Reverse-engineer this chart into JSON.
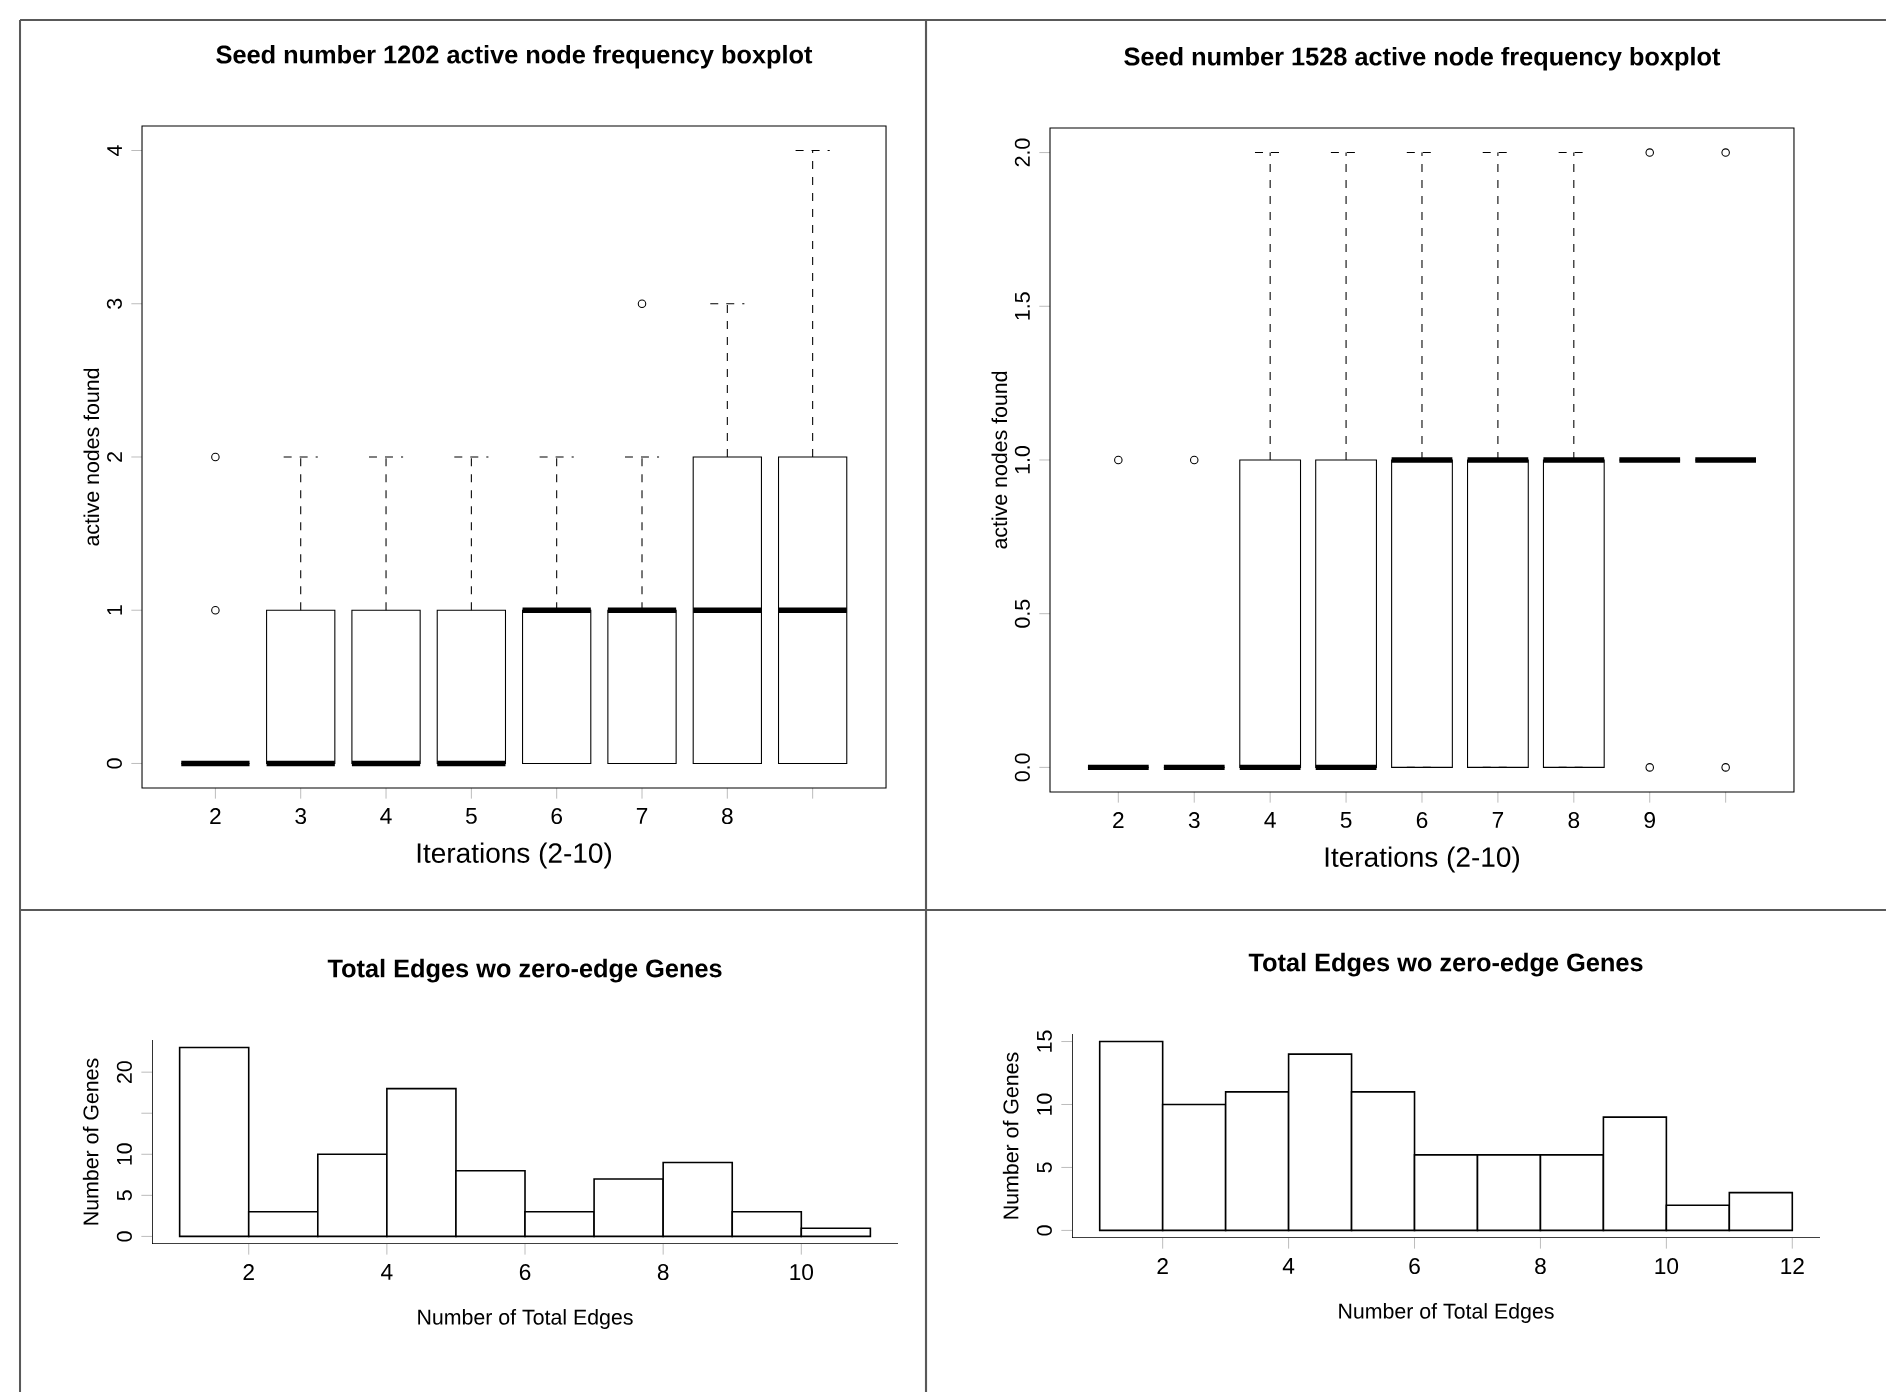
{
  "chart_data": [
    {
      "type": "box",
      "title": "Seed number 1202 active node frequency boxplot",
      "xlabel": "Iterations (2-10)",
      "ylabel": "active nodes found",
      "categories": [
        "2",
        "3",
        "4",
        "5",
        "6",
        "7",
        "8",
        null
      ],
      "boxes": [
        {
          "low": 0,
          "q1": 0,
          "median": 0,
          "q3": 0,
          "high": 0,
          "outliers": [
            1,
            2
          ]
        },
        {
          "low": 0,
          "q1": 0,
          "median": 0,
          "q3": 1,
          "high": 2
        },
        {
          "low": 0,
          "q1": 0,
          "median": 0,
          "q3": 1,
          "high": 2
        },
        {
          "low": 0,
          "q1": 0,
          "median": 0,
          "q3": 1,
          "high": 2
        },
        {
          "low": 0,
          "q1": 0,
          "median": 1,
          "q3": 1,
          "high": 2
        },
        {
          "low": 0,
          "q1": 0,
          "median": 1,
          "q3": 1,
          "high": 2,
          "outliers": [
            3
          ]
        },
        {
          "low": 0,
          "q1": 0,
          "median": 1,
          "q3": 2,
          "high": 3
        },
        {
          "low": 0,
          "q1": 0,
          "median": 1,
          "q3": 2,
          "high": 4
        }
      ],
      "ylim": [
        -0.16,
        4.16
      ],
      "yticks": [
        0,
        1,
        2,
        3,
        4
      ],
      "marker": "circle"
    },
    {
      "type": "box",
      "title": "Seed number 1528 active node frequency boxplot",
      "xlabel": "Iterations (2-10)",
      "ylabel": "active nodes found",
      "categories": [
        "2",
        "3",
        "4",
        "5",
        "6",
        "7",
        "8",
        "9",
        null
      ],
      "boxes": [
        {
          "low": 0,
          "q1": 0,
          "median": 0,
          "q3": 0,
          "high": 0,
          "outliers": [
            1
          ]
        },
        {
          "low": 0,
          "q1": 0,
          "median": 0,
          "q3": 0,
          "high": 0,
          "outliers": [
            1
          ]
        },
        {
          "low": 0,
          "q1": 0,
          "median": 0,
          "q3": 1,
          "high": 2
        },
        {
          "low": 0,
          "q1": 0,
          "median": 0,
          "q3": 1,
          "high": 2
        },
        {
          "low": 0,
          "q1": 0,
          "median": 1,
          "q3": 1,
          "high": 2
        },
        {
          "low": 0,
          "q1": 0,
          "median": 1,
          "q3": 1,
          "high": 2
        },
        {
          "low": 0,
          "q1": 0,
          "median": 1,
          "q3": 1,
          "high": 2
        },
        {
          "low": 1,
          "q1": 1,
          "median": 1,
          "q3": 1,
          "high": 1,
          "outliers": [
            0,
            2
          ]
        },
        {
          "low": 1,
          "q1": 1,
          "median": 1,
          "q3": 1,
          "high": 1,
          "outliers": [
            0,
            2
          ]
        }
      ],
      "ylim": [
        -0.08,
        2.08
      ],
      "yticks": [
        {
          "value": 0,
          "label": "0.0"
        },
        {
          "value": 0.5,
          "label": "0.5"
        },
        {
          "value": 1,
          "label": "1.0"
        },
        {
          "value": 1.5,
          "label": "1.5"
        },
        {
          "value": 2,
          "label": "2.0"
        }
      ],
      "marker": "circle"
    },
    {
      "type": "histogram",
      "title": "Total Edges wo zero-edge Genes",
      "xlabel": "Number of Total Edges",
      "ylabel": "Number of Genes",
      "bins": [
        1,
        2,
        3,
        4,
        5,
        6,
        7,
        8,
        9,
        10,
        11
      ],
      "values": [
        23,
        3,
        10,
        18,
        8,
        3,
        7,
        9,
        3,
        1
      ],
      "xlim": [
        0.6,
        11.4
      ],
      "xticks": [
        2,
        4,
        6,
        8,
        10
      ],
      "ylim": [
        -0.92,
        23.92
      ],
      "yticks": [
        0,
        5,
        10,
        {
          "value": 15,
          "label": null
        },
        20
      ]
    },
    {
      "type": "histogram",
      "title": "Total Edges wo zero-edge Genes",
      "xlabel": "Number of Total Edges",
      "ylabel": "Number of Genes",
      "bins": [
        1,
        2,
        3,
        4,
        5,
        6,
        7,
        8,
        9,
        10,
        11,
        12
      ],
      "values": [
        15,
        10,
        11,
        14,
        11,
        6,
        6,
        6,
        9,
        2,
        3
      ],
      "xlim": [
        0.56,
        12.44
      ],
      "xticks": [
        2,
        4,
        6,
        8,
        10,
        12
      ],
      "ylim": [
        -0.6,
        15.6
      ],
      "yticks": [
        0,
        5,
        10,
        15
      ]
    }
  ]
}
